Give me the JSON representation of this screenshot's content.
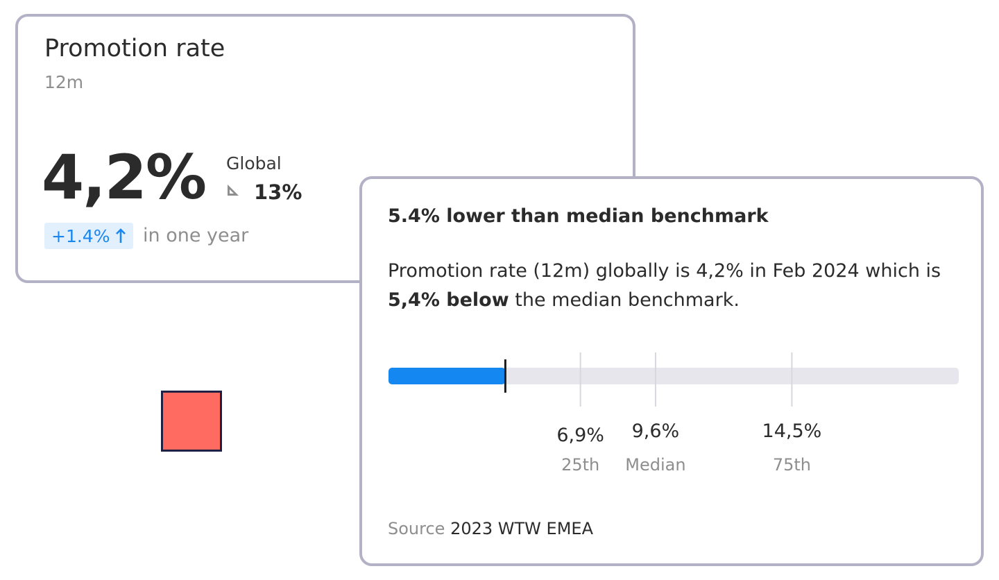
{
  "kpi": {
    "title": "Promotion rate",
    "period": "12m",
    "value": "4,2%",
    "global_label": "Global",
    "global_icon": "ruler-triangle-icon",
    "global_value": "13%",
    "change": "+1.4%",
    "change_icon": "arrow-up-icon",
    "change_suffix": "in one year",
    "change_color": "#1a86ef"
  },
  "swatch": {
    "color": "#ff6b61"
  },
  "benchmark": {
    "title": "5.4% lower than median benchmark",
    "desc_part1": "Promotion rate (12m) globally is 4,2% in Feb 2024 which is ",
    "desc_bold": "5,4% below",
    "desc_part2": " the median benchmark.",
    "bar": {
      "current": 4.2,
      "max": 20.5,
      "fill_color": "#1487f0",
      "track_color": "#e6e6ec"
    },
    "ticks": [
      {
        "value": 6.9,
        "value_label": "6,9%",
        "label": "25th"
      },
      {
        "value": 9.6,
        "value_label": "9,6%",
        "label": "Median"
      },
      {
        "value": 14.5,
        "value_label": "14,5%",
        "label": "75th"
      }
    ],
    "source_label": "Source",
    "source_value": "2023 WTW EMEA"
  }
}
